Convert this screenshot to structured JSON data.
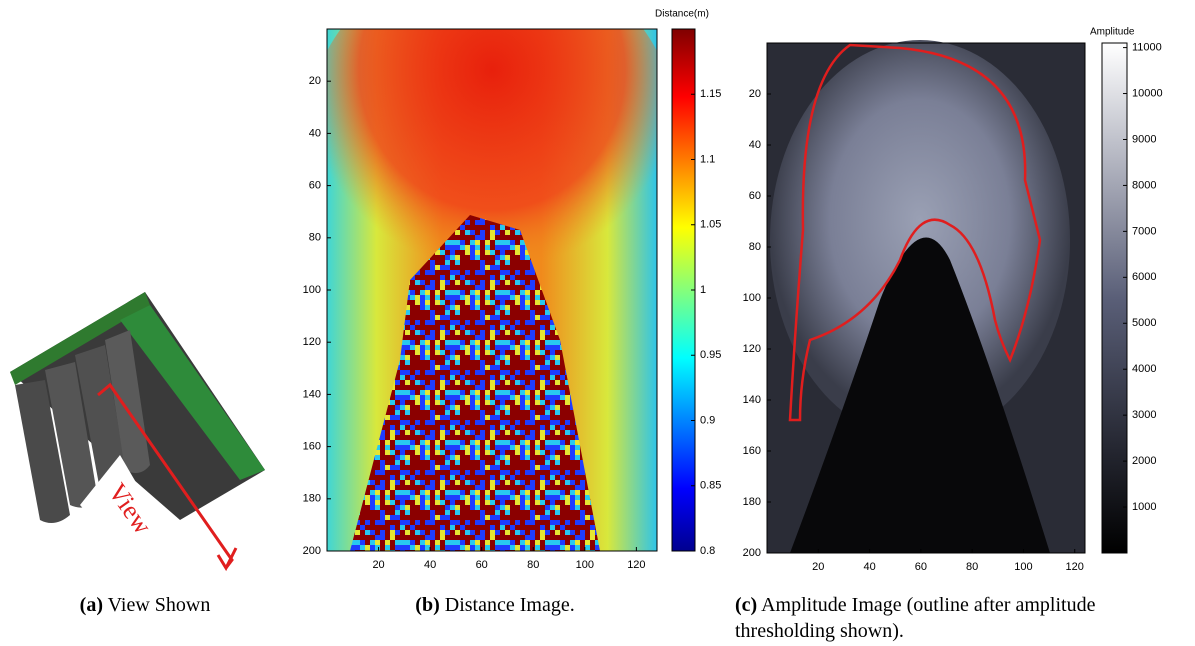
{
  "figure": {
    "panels": [
      {
        "label": "(a)",
        "caption": "View Shown",
        "image_text": "View"
      },
      {
        "label": "(b)",
        "caption": "Distance Image.",
        "xlim": [
          0,
          128
        ],
        "ylim": [
          0,
          200
        ],
        "xticks": [
          20,
          40,
          60,
          80,
          100,
          120
        ],
        "yticks": [
          20,
          40,
          60,
          80,
          100,
          120,
          140,
          160,
          180,
          200
        ],
        "colorbar": {
          "label": "Distance(m)",
          "clim": [
            0.8,
            1.2
          ],
          "ticks": [
            0.8,
            0.85,
            0.9,
            0.95,
            1,
            1.05,
            1.1,
            1.15
          ]
        }
      },
      {
        "label": "(c)",
        "caption": "Amplitude Image (outline after amplitude thresholding shown).",
        "xlim": [
          0,
          124
        ],
        "ylim": [
          0,
          200
        ],
        "xticks": [
          20,
          40,
          60,
          80,
          100,
          120
        ],
        "yticks": [
          20,
          40,
          60,
          80,
          100,
          120,
          140,
          160,
          180,
          200
        ],
        "colorbar": {
          "label": "Amplitude",
          "clim": [
            0,
            11100
          ],
          "ticks": [
            1000,
            2000,
            3000,
            4000,
            5000,
            6000,
            7000,
            8000,
            9000,
            10000,
            11000
          ]
        }
      }
    ]
  }
}
